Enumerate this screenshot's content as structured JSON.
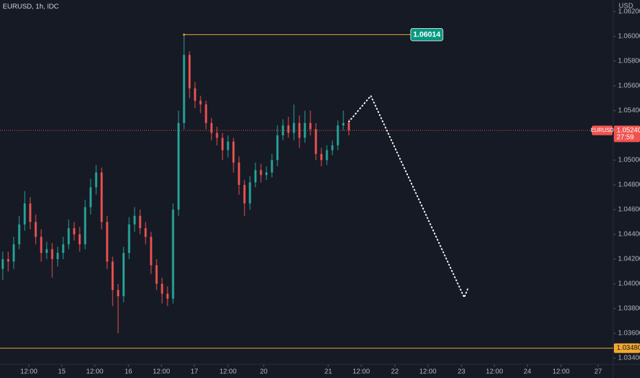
{
  "chart_data": {
    "type": "candlestick",
    "title": "EURUSD, 1h, IDC",
    "y_axis_label": "USD",
    "x": [
      0,
      2,
      4,
      6,
      8,
      10,
      12,
      14,
      16,
      18,
      20,
      22,
      24,
      26,
      28,
      30,
      32,
      34,
      36,
      38,
      40,
      42,
      44,
      46,
      48,
      50,
      52,
      54,
      56,
      58,
      60,
      62,
      64,
      66,
      68,
      70,
      72,
      74,
      76,
      78,
      80,
      82,
      84,
      86,
      88,
      90,
      92,
      94,
      96,
      98,
      100,
      102,
      104,
      106,
      108,
      110,
      112,
      114,
      116,
      118,
      120,
      122,
      124,
      126
    ],
    "series": [
      {
        "name": "EURUSD",
        "open": [
          1.0412,
          1.042,
          1.0418,
          1.0432,
          1.0448,
          1.0465,
          1.045,
          1.0438,
          1.0425,
          1.0428,
          1.042,
          1.0425,
          1.0432,
          1.0445,
          1.044,
          1.0432,
          1.0462,
          1.0478,
          1.049,
          1.045,
          1.0418,
          1.0395,
          1.039,
          1.0425,
          1.0448,
          1.0455,
          1.0445,
          1.0438,
          1.0415,
          1.04,
          1.0392,
          1.0388,
          1.046,
          1.053,
          1.0585,
          1.0558,
          1.0548,
          1.0545,
          1.053,
          1.0522,
          1.0518,
          1.0508,
          1.0515,
          1.0498,
          1.048,
          1.0465,
          1.0482,
          1.0492,
          1.0488,
          1.049,
          1.05,
          1.052,
          1.0528,
          1.0522,
          1.053,
          1.0518,
          1.053,
          1.0525,
          1.0505,
          1.05,
          1.0508,
          1.0512,
          1.0528,
          1.053
        ],
        "high": [
          1.0426,
          1.0426,
          1.0438,
          1.0455,
          1.0475,
          1.047,
          1.0456,
          1.0444,
          1.0434,
          1.0433,
          1.043,
          1.0438,
          1.0452,
          1.045,
          1.0446,
          1.0468,
          1.0485,
          1.0496,
          1.0494,
          1.0455,
          1.0422,
          1.04,
          1.043,
          1.0454,
          1.0462,
          1.046,
          1.045,
          1.0442,
          1.042,
          1.0405,
          1.0398,
          1.0465,
          1.054,
          1.06014,
          1.0588,
          1.0563,
          1.0552,
          1.0548,
          1.0534,
          1.0527,
          1.0522,
          1.052,
          1.0518,
          1.0503,
          1.0484,
          1.0487,
          1.0498,
          1.0497,
          1.0495,
          1.0505,
          1.0528,
          1.0533,
          1.0535,
          1.0545,
          1.0536,
          1.054,
          1.054,
          1.053,
          1.051,
          1.0512,
          1.0516,
          1.0532,
          1.054,
          1.0533
        ],
        "low": [
          1.0403,
          1.041,
          1.0412,
          1.0428,
          1.0443,
          1.0444,
          1.0432,
          1.0418,
          1.042,
          1.0405,
          1.0414,
          1.042,
          1.0428,
          1.0435,
          1.0426,
          1.0428,
          1.0456,
          1.0472,
          1.0444,
          1.0412,
          1.0382,
          1.036,
          1.0385,
          1.042,
          1.0442,
          1.044,
          1.0432,
          1.0408,
          1.0395,
          1.0384,
          1.0382,
          1.0384,
          1.0455,
          1.0525,
          1.055,
          1.0542,
          1.0538,
          1.0525,
          1.0516,
          1.0512,
          1.05,
          1.0502,
          1.049,
          1.0472,
          1.0455,
          1.046,
          1.0478,
          1.0482,
          1.0484,
          1.0486,
          1.0495,
          1.0516,
          1.0518,
          1.0516,
          1.051,
          1.0514,
          1.052,
          1.05,
          1.0495,
          1.0496,
          1.0504,
          1.0508,
          1.0524,
          1.052
        ],
        "close": [
          1.042,
          1.0418,
          1.0432,
          1.0448,
          1.0465,
          1.045,
          1.0438,
          1.0425,
          1.0428,
          1.042,
          1.0425,
          1.0432,
          1.0445,
          1.044,
          1.0432,
          1.0462,
          1.0478,
          1.049,
          1.045,
          1.0418,
          1.0395,
          1.039,
          1.0425,
          1.0448,
          1.0455,
          1.0445,
          1.0438,
          1.0415,
          1.04,
          1.0392,
          1.0388,
          1.046,
          1.053,
          1.0585,
          1.0558,
          1.0548,
          1.0545,
          1.053,
          1.0522,
          1.0518,
          1.0508,
          1.0515,
          1.0498,
          1.048,
          1.0465,
          1.0482,
          1.0492,
          1.0488,
          1.049,
          1.05,
          1.052,
          1.0528,
          1.0522,
          1.053,
          1.0518,
          1.053,
          1.0525,
          1.0505,
          1.05,
          1.0508,
          1.0512,
          1.0528,
          1.053,
          1.0524
        ]
      }
    ],
    "up_color": "#26a69a",
    "down_color": "#ef5350",
    "xlim": [
      -1,
      222.25
    ],
    "ylim": [
      1.0335,
      1.06294
    ],
    "xticks": [
      {
        "value": 9.5,
        "label": "12:00"
      },
      {
        "value": 21.5,
        "label": "15"
      },
      {
        "value": 33.5,
        "label": "12:00"
      },
      {
        "value": 45.75,
        "label": "16"
      },
      {
        "value": 57.75,
        "label": "12:00"
      },
      {
        "value": 69.75,
        "label": "17"
      },
      {
        "value": 82,
        "label": "12:00"
      },
      {
        "value": 95,
        "label": "20"
      },
      {
        "value": 118.5,
        "label": "21"
      },
      {
        "value": 130.5,
        "label": "12:00"
      },
      {
        "value": 142.75,
        "label": "22"
      },
      {
        "value": 154.75,
        "label": "12:00"
      },
      {
        "value": 167,
        "label": "23"
      },
      {
        "value": 179,
        "label": "12:00"
      },
      {
        "value": 191,
        "label": "24"
      },
      {
        "value": 203.25,
        "label": "12:00"
      },
      {
        "value": 216.75,
        "label": "27"
      }
    ],
    "yticks": [
      {
        "value": 1.034,
        "label": "1.03400"
      },
      {
        "value": 1.036,
        "label": "1.03600"
      },
      {
        "value": 1.038,
        "label": "1.03800"
      },
      {
        "value": 1.04,
        "label": "1.04000"
      },
      {
        "value": 1.042,
        "label": "1.04200"
      },
      {
        "value": 1.044,
        "label": "1.04400"
      },
      {
        "value": 1.046,
        "label": "1.04600"
      },
      {
        "value": 1.048,
        "label": "1.04800"
      },
      {
        "value": 1.05,
        "label": "1.05000"
      },
      {
        "value": 1.054,
        "label": "1.05400"
      },
      {
        "value": 1.056,
        "label": "1.05600"
      },
      {
        "value": 1.058,
        "label": "1.05800"
      },
      {
        "value": 1.06,
        "label": "1.06000"
      },
      {
        "value": 1.062,
        "label": "1.06200"
      }
    ],
    "last_price": {
      "value": 1.0524,
      "label": "1.05240"
    },
    "countdown": "27:59",
    "support_line": {
      "value": 1.0348,
      "label": "1.03480",
      "color": "#f0a830"
    },
    "high_line": {
      "x": [
        66,
        148.5
      ],
      "value": 1.06014,
      "color": "#f0a830"
    },
    "projection": {
      "x": [
        126,
        134,
        168,
        169.5
      ],
      "values": [
        1.0531,
        1.0552,
        1.0389,
        1.0397
      ],
      "color": "#ffffff"
    }
  }
}
